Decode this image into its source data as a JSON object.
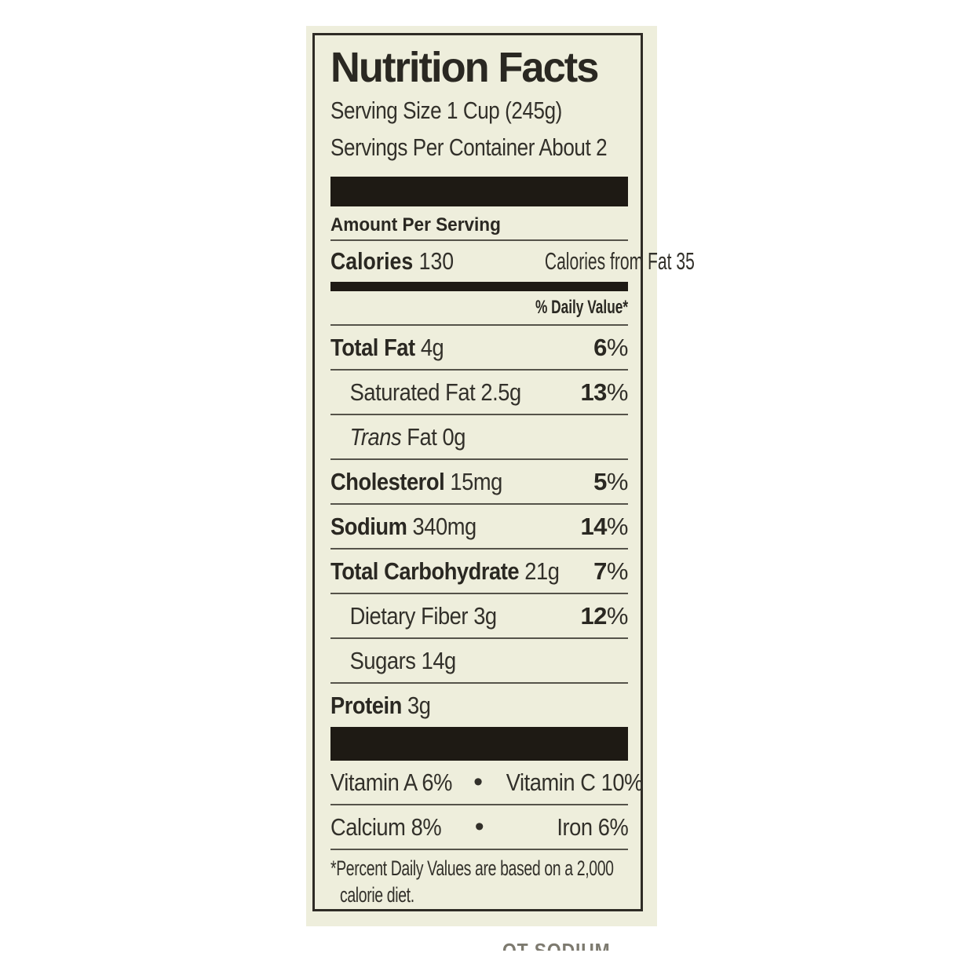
{
  "label": {
    "title": "Nutrition Facts",
    "serving_size": "Serving Size 1 Cup (245g)",
    "servings_per_container": "Servings Per Container About 2",
    "amount_per_serving": "Amount Per Serving",
    "calories_label": "Calories",
    "calories_value": "130",
    "calories_from_fat": "Calories from Fat 35",
    "daily_value_header": "% Daily Value*",
    "rows": [
      {
        "bold": "Total Fat",
        "italic": "",
        "regular": "",
        "amount": "4g",
        "dv": "6%",
        "indent": false
      },
      {
        "bold": "",
        "italic": "",
        "regular": "Saturated Fat",
        "amount": "2.5g",
        "dv": "13%",
        "indent": true
      },
      {
        "bold": "",
        "italic": "Trans",
        "regular": " Fat",
        "amount": "0g",
        "dv": "",
        "indent": true
      },
      {
        "bold": "Cholesterol",
        "italic": "",
        "regular": "",
        "amount": "15mg",
        "dv": "5%",
        "indent": false
      },
      {
        "bold": "Sodium",
        "italic": "",
        "regular": "",
        "amount": "340mg",
        "dv": "14%",
        "indent": false
      },
      {
        "bold": "Total Carbohydrate",
        "italic": "",
        "regular": "",
        "amount": "21g",
        "dv": "7%",
        "indent": false
      },
      {
        "bold": "",
        "italic": "",
        "regular": "Dietary Fiber",
        "amount": "3g",
        "dv": "12%",
        "indent": true
      },
      {
        "bold": "",
        "italic": "",
        "regular": "Sugars",
        "amount": "14g",
        "dv": "",
        "indent": true
      },
      {
        "bold": "Protein",
        "italic": "",
        "regular": "",
        "amount": "3g",
        "dv": "",
        "indent": false
      }
    ],
    "bullet": "•",
    "vitamins": [
      {
        "left": "Vitamin A 6%",
        "right": "Vitamin C 10%"
      },
      {
        "left": "Calcium 8%",
        "right": "Iron 6%"
      }
    ],
    "footnote_line1": "*Percent Daily Values are based on a 2,000",
    "footnote_line2": "calorie diet.",
    "cutoff_text": "OT SODIUM"
  },
  "colors": {
    "page_bg": "#ffffff",
    "label_bg": "#eeeedc",
    "border": "#2e2b25",
    "bar": "#1e1a14",
    "hairline": "#55534a",
    "text": "#32302a",
    "text_bold": "#2a2822",
    "cutoff": "#7d7a6f"
  }
}
